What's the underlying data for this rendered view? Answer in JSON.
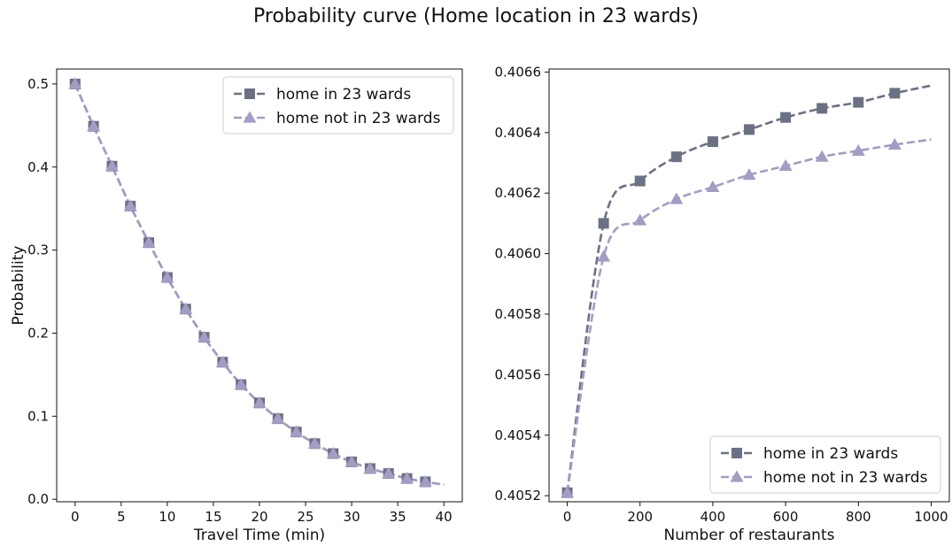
{
  "figure": {
    "title": "Probability curve (Home location in 23 wards)"
  },
  "colors": {
    "series_home": "#6b7184",
    "series_not_home": "#a39cc4"
  },
  "chart_data": [
    {
      "type": "line",
      "xlabel": "Travel Time (min)",
      "ylabel": "Probability",
      "xlim": [
        -2,
        42
      ],
      "ylim": [
        -0.003,
        0.518
      ],
      "xticks": [
        0,
        5,
        10,
        15,
        20,
        25,
        30,
        35,
        40
      ],
      "xtick_labels": [
        "0",
        "5",
        "10",
        "15",
        "20",
        "25",
        "30",
        "35",
        "40"
      ],
      "yticks": [
        0.0,
        0.1,
        0.2,
        0.3,
        0.4,
        0.5
      ],
      "ytick_labels": [
        "0.0",
        "0.1",
        "0.2",
        "0.3",
        "0.4",
        "0.5"
      ],
      "legend_position": "top-right",
      "line_style": "dashed",
      "series": [
        {
          "name": "home in 23 wards",
          "marker": "square",
          "color": "#6b7184",
          "curve_x": [
            0,
            40
          ],
          "x": [
            0,
            2,
            4,
            6,
            8,
            10,
            12,
            14,
            16,
            18,
            20,
            22,
            24,
            26,
            28,
            30,
            32,
            34,
            36,
            38
          ],
          "y": [
            0.5,
            0.449,
            0.401,
            0.353,
            0.309,
            0.267,
            0.229,
            0.195,
            0.165,
            0.138,
            0.116,
            0.097,
            0.081,
            0.067,
            0.055,
            0.045,
            0.037,
            0.031,
            0.025,
            0.021
          ]
        },
        {
          "name": "home not in 23 wards",
          "marker": "triangle",
          "color": "#a39cc4",
          "curve_x": [
            0,
            40
          ],
          "x": [
            0,
            2,
            4,
            6,
            8,
            10,
            12,
            14,
            16,
            18,
            20,
            22,
            24,
            26,
            28,
            30,
            32,
            34,
            36,
            38
          ],
          "y": [
            0.5,
            0.449,
            0.401,
            0.353,
            0.309,
            0.267,
            0.229,
            0.195,
            0.165,
            0.138,
            0.116,
            0.097,
            0.081,
            0.067,
            0.055,
            0.045,
            0.037,
            0.031,
            0.025,
            0.021
          ]
        }
      ]
    },
    {
      "type": "line",
      "xlabel": "Number of restaurants",
      "ylabel": "",
      "xlim": [
        -50,
        1050
      ],
      "ylim": [
        0.40518,
        0.40661
      ],
      "xticks": [
        0,
        200,
        400,
        600,
        800,
        1000
      ],
      "xtick_labels": [
        "0",
        "200",
        "400",
        "600",
        "800",
        "1000"
      ],
      "yticks": [
        0.4052,
        0.4054,
        0.4056,
        0.4058,
        0.406,
        0.4062,
        0.4064,
        0.4066
      ],
      "ytick_labels": [
        "0.4052",
        "0.4054",
        "0.4056",
        "0.4058",
        "0.4060",
        "0.4062",
        "0.4064",
        "0.4066"
      ],
      "legend_position": "bottom-right",
      "line_style": "dashed",
      "series": [
        {
          "name": "home in 23 wards",
          "marker": "square",
          "color": "#6b7184",
          "curve_x": [
            0,
            1000
          ],
          "x": [
            0,
            100,
            200,
            300,
            400,
            500,
            600,
            700,
            800,
            900
          ],
          "y": [
            0.40521,
            0.4061,
            0.40624,
            0.40632,
            0.40637,
            0.40641,
            0.40645,
            0.40648,
            0.4065,
            0.40653
          ]
        },
        {
          "name": "home not in 23 wards",
          "marker": "triangle",
          "color": "#a39cc4",
          "curve_x": [
            0,
            1000
          ],
          "x": [
            0,
            100,
            200,
            300,
            400,
            500,
            600,
            700,
            800,
            900
          ],
          "y": [
            0.40521,
            0.40599,
            0.40611,
            0.40618,
            0.40622,
            0.40626,
            0.40629,
            0.40632,
            0.40634,
            0.40636
          ]
        }
      ]
    }
  ]
}
